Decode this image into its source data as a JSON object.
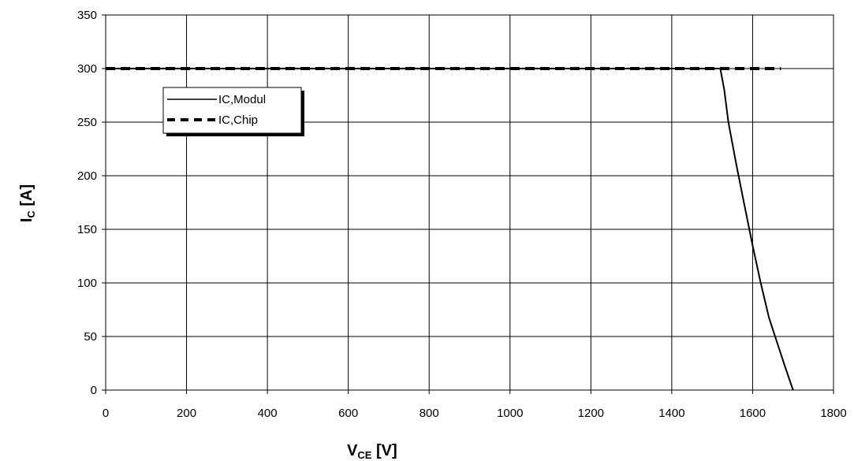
{
  "chart_data": {
    "type": "line",
    "xlabel_main": "V",
    "xlabel_sub": "CE",
    "xlabel_unit": " [V]",
    "ylabel_main": "I",
    "ylabel_sub": "C",
    "ylabel_unit": " [A]",
    "xlim": [
      0,
      1800
    ],
    "ylim": [
      0,
      350
    ],
    "x_ticks": [
      0,
      200,
      400,
      600,
      800,
      1000,
      1200,
      1400,
      1600,
      1800
    ],
    "y_ticks": [
      0,
      50,
      100,
      150,
      200,
      250,
      300,
      350
    ],
    "grid": true,
    "legend_position": "top-left",
    "series": [
      {
        "name": "IC,Modul",
        "style": "solid",
        "color": "#000000",
        "x": [
          0,
          1520,
          1530,
          1540,
          1560,
          1580,
          1600,
          1620,
          1640,
          1660,
          1680,
          1700
        ],
        "y": [
          300,
          300,
          280,
          250,
          210,
          172,
          135,
          100,
          68,
          45,
          22,
          0
        ]
      },
      {
        "name": "IC,Chip",
        "style": "dashed",
        "color": "#000000",
        "x": [
          0,
          1670
        ],
        "y": [
          300,
          300
        ]
      }
    ]
  }
}
